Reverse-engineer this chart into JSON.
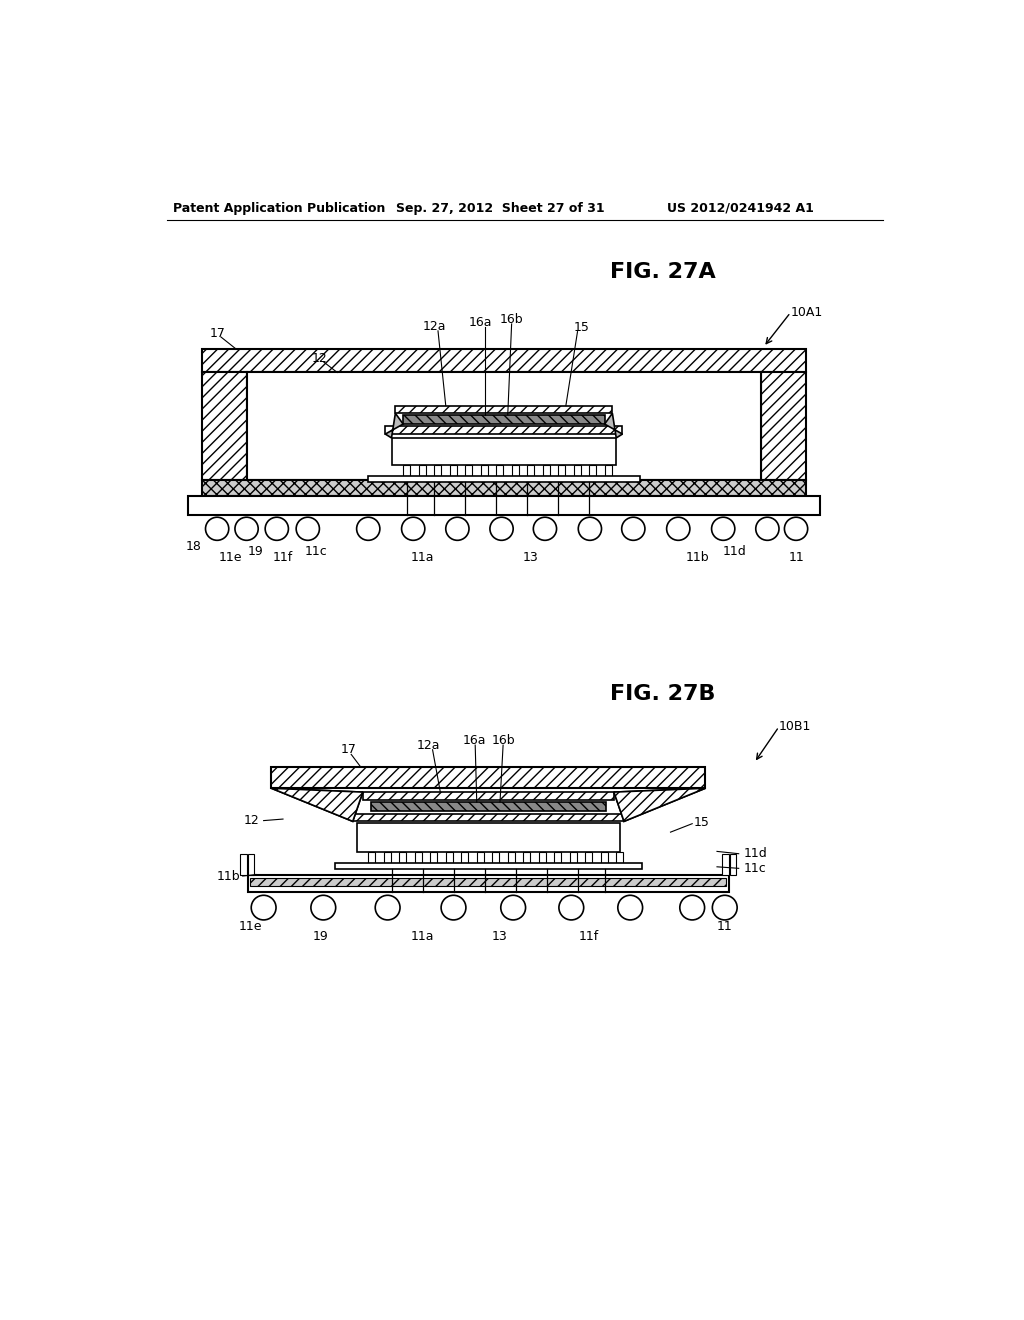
{
  "header_left": "Patent Application Publication",
  "header_mid": "Sep. 27, 2012  Sheet 27 of 31",
  "header_right": "US 2012/0241942 A1",
  "fig_a_title": "FIG. 27A",
  "fig_b_title": "FIG. 27B",
  "label_10A1": "10A1",
  "label_10B1": "10B1",
  "bg_color": "#ffffff",
  "line_color": "#000000"
}
